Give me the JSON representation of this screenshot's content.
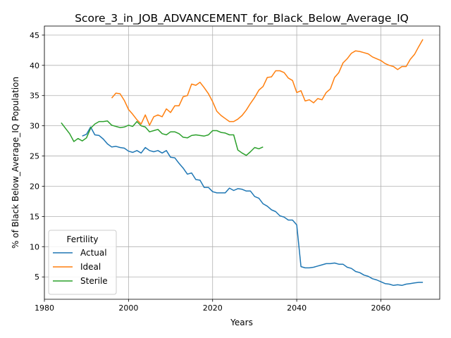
{
  "chart_data": {
    "type": "line",
    "title": "Score_3_in_JOB_ADVANCEMENT_for_Black_Below_Average_IQ",
    "xlabel": "Years",
    "ylabel": "% of Black Below_Average_IQ Population",
    "xlim": [
      1980,
      2074
    ],
    "ylim": [
      1.3,
      46.5
    ],
    "xticks": [
      1980,
      2000,
      2020,
      2040,
      2060
    ],
    "yticks": [
      5,
      10,
      15,
      20,
      25,
      30,
      35,
      40,
      45
    ],
    "grid": true,
    "legend": {
      "title": "Fertility",
      "placement": "lower-left"
    },
    "series": [
      {
        "name": "Actual",
        "color": "#1f77b4",
        "x": [
          1989,
          1990,
          1991,
          1992,
          1993,
          1994,
          1995,
          1996,
          1997,
          1998,
          1999,
          2000,
          2001,
          2002,
          2003,
          2004,
          2005,
          2006,
          2007,
          2008,
          2009,
          2010,
          2011,
          2012,
          2013,
          2014,
          2015,
          2016,
          2017,
          2018,
          2019,
          2020,
          2021,
          2022,
          2023,
          2024,
          2025,
          2026,
          2027,
          2028,
          2029,
          2030,
          2031,
          2032,
          2033,
          2034,
          2035,
          2036,
          2037,
          2038,
          2039,
          2040,
          2041,
          2042,
          2043,
          2044,
          2045,
          2046,
          2047,
          2048,
          2049,
          2050,
          2051,
          2052,
          2053,
          2054,
          2055,
          2056,
          2057,
          2058,
          2059,
          2060,
          2061,
          2062,
          2063,
          2064,
          2065,
          2066,
          2067,
          2068,
          2069,
          2070
        ],
        "y": [
          28.3,
          28.6,
          29.8,
          28.5,
          28.4,
          27.8,
          27.0,
          26.5,
          26.6,
          26.4,
          26.3,
          25.8,
          25.6,
          25.9,
          25.5,
          26.4,
          25.9,
          25.7,
          25.9,
          25.5,
          25.9,
          24.8,
          24.7,
          23.8,
          23.0,
          22.0,
          22.2,
          21.1,
          21.0,
          19.8,
          19.8,
          19.1,
          18.9,
          18.9,
          18.9,
          19.7,
          19.3,
          19.6,
          19.5,
          19.2,
          19.2,
          18.3,
          18.0,
          17.1,
          16.7,
          16.1,
          15.8,
          15.1,
          14.9,
          14.4,
          14.4,
          13.6,
          6.7,
          6.5,
          6.5,
          6.6,
          6.8,
          7.0,
          7.2,
          7.2,
          7.3,
          7.1,
          7.1,
          6.6,
          6.4,
          5.9,
          5.7,
          5.3,
          5.1,
          4.7,
          4.5,
          4.2,
          3.9,
          3.8,
          3.6,
          3.7,
          3.6,
          3.8,
          3.9,
          4.0,
          4.1,
          4.1
        ]
      },
      {
        "name": "Ideal",
        "color": "#ff7f0e",
        "x": [
          1996,
          1997,
          1998,
          1999,
          2000,
          2001,
          2002,
          2003,
          2004,
          2005,
          2006,
          2007,
          2008,
          2009,
          2010,
          2011,
          2012,
          2013,
          2014,
          2015,
          2016,
          2017,
          2018,
          2019,
          2020,
          2021,
          2022,
          2023,
          2024,
          2025,
          2026,
          2027,
          2028,
          2029,
          2030,
          2031,
          2032,
          2033,
          2034,
          2035,
          2036,
          2037,
          2038,
          2039,
          2040,
          2041,
          2042,
          2043,
          2044,
          2045,
          2046,
          2047,
          2048,
          2049,
          2050,
          2051,
          2052,
          2053,
          2054,
          2055,
          2056,
          2057,
          2058,
          2059,
          2060,
          2061,
          2062,
          2063,
          2064,
          2065,
          2066,
          2067,
          2068,
          2069,
          2070
        ],
        "y": [
          34.6,
          35.4,
          35.3,
          34.2,
          32.7,
          31.9,
          31.0,
          30.3,
          31.8,
          30.1,
          31.5,
          31.8,
          31.5,
          32.8,
          32.2,
          33.3,
          33.3,
          34.8,
          35.0,
          36.9,
          36.7,
          37.2,
          36.3,
          35.3,
          34.0,
          32.4,
          31.7,
          31.2,
          30.7,
          30.7,
          31.1,
          31.7,
          32.6,
          33.7,
          34.7,
          35.9,
          36.5,
          38.0,
          38.1,
          39.1,
          39.1,
          38.8,
          37.9,
          37.5,
          35.5,
          35.8,
          34.1,
          34.3,
          33.8,
          34.5,
          34.3,
          35.5,
          36.1,
          38.0,
          38.8,
          40.4,
          41.1,
          42.0,
          42.4,
          42.3,
          42.1,
          41.9,
          41.4,
          41.1,
          40.8,
          40.3,
          40.0,
          39.8,
          39.3,
          39.8,
          39.8,
          41.0,
          41.8,
          43.1,
          44.3
        ]
      },
      {
        "name": "Sterile",
        "color": "#2ca02c",
        "x": [
          1984,
          1985,
          1986,
          1987,
          1988,
          1989,
          1990,
          1991,
          1992,
          1993,
          1994,
          1995,
          1996,
          1997,
          1998,
          1999,
          2000,
          2001,
          2002,
          2003,
          2004,
          2005,
          2006,
          2007,
          2008,
          2009,
          2010,
          2011,
          2012,
          2013,
          2014,
          2015,
          2016,
          2017,
          2018,
          2019,
          2020,
          2021,
          2022,
          2023,
          2024,
          2025,
          2026,
          2027,
          2028,
          2029,
          2030,
          2031,
          2032
        ],
        "y": [
          30.5,
          29.6,
          28.7,
          27.4,
          27.9,
          27.5,
          28.0,
          29.6,
          30.3,
          30.7,
          30.7,
          30.8,
          30.1,
          29.9,
          29.7,
          29.8,
          30.1,
          29.9,
          30.7,
          30.0,
          29.8,
          29.0,
          29.2,
          29.4,
          28.7,
          28.5,
          29.0,
          29.0,
          28.7,
          28.1,
          28.0,
          28.4,
          28.5,
          28.4,
          28.3,
          28.5,
          29.2,
          29.2,
          28.9,
          28.8,
          28.5,
          28.5,
          26.0,
          25.5,
          25.1,
          25.7,
          26.4,
          26.2,
          26.5
        ]
      }
    ]
  }
}
